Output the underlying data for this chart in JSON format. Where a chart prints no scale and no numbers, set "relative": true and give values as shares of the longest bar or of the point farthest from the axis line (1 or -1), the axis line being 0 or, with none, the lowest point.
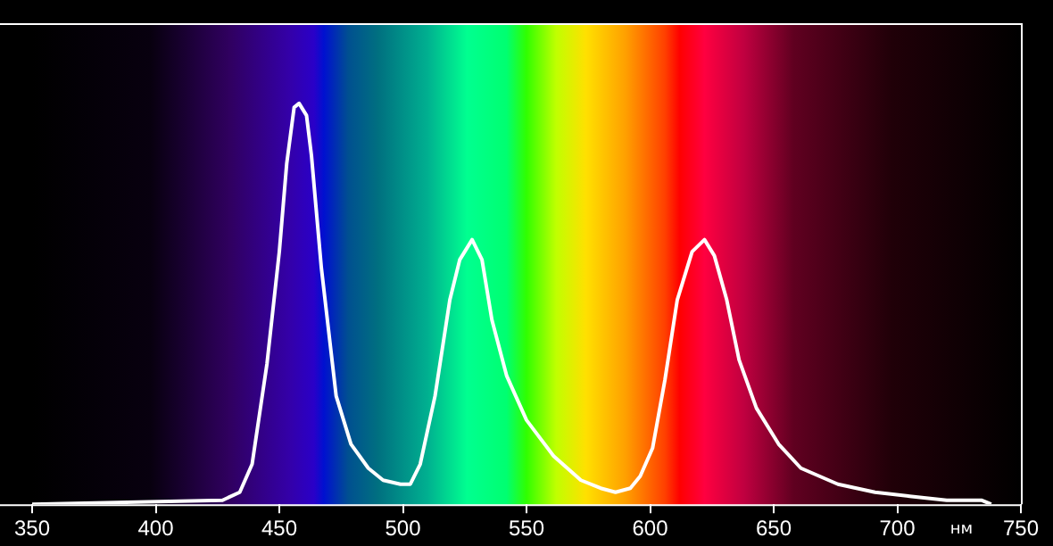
{
  "chart_data": {
    "type": "line",
    "relative": true,
    "xlabel": "нм",
    "color": "#ffffff",
    "marker": "none",
    "line_style": "solid",
    "legend": false,
    "grid": false,
    "xlim": [
      350,
      750
    ],
    "xticks": [
      350,
      400,
      450,
      500,
      550,
      600,
      650,
      700,
      750
    ],
    "x": [
      350,
      427,
      434,
      439,
      445,
      450,
      453,
      456,
      458,
      461,
      463,
      467,
      473,
      479,
      486,
      492,
      499,
      503,
      507,
      513,
      519,
      523,
      528,
      532,
      536,
      542,
      550,
      561,
      572,
      580,
      586,
      592,
      596,
      601,
      606,
      611,
      617,
      622,
      626,
      631,
      636,
      643,
      652,
      661,
      676,
      691,
      705,
      720,
      734,
      738
    ],
    "values": [
      0,
      0.01,
      0.03,
      0.1,
      0.35,
      0.63,
      0.85,
      0.99,
      1,
      0.97,
      0.87,
      0.59,
      0.27,
      0.15,
      0.09,
      0.06,
      0.05,
      0.05,
      0.1,
      0.27,
      0.51,
      0.61,
      0.66,
      0.61,
      0.46,
      0.32,
      0.21,
      0.12,
      0.06,
      0.04,
      0.03,
      0.04,
      0.07,
      0.14,
      0.31,
      0.51,
      0.63,
      0.66,
      0.62,
      0.51,
      0.36,
      0.24,
      0.15,
      0.09,
      0.05,
      0.03,
      0.02,
      0.01,
      0.01,
      0
    ]
  }
}
